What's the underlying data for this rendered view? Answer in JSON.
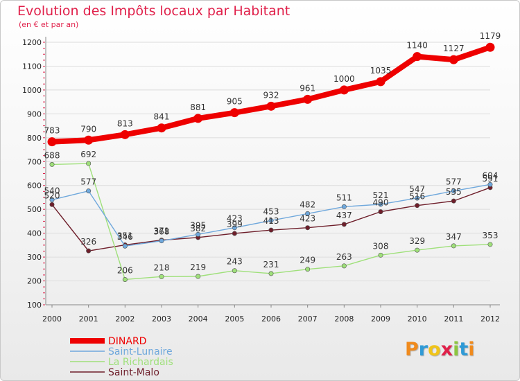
{
  "title": "Evolution des Impôts locaux par Habitant",
  "subtitle": "(en € et par an)",
  "logo": {
    "letters": [
      "P",
      "r",
      "o",
      "x",
      "i",
      "t",
      "i"
    ],
    "colors": [
      "#f08a1c",
      "#2f9ad6",
      "#f0c419",
      "#e0204a",
      "#8cc63f",
      "#2f9ad6",
      "#f08a1c"
    ]
  },
  "chart_data": {
    "type": "line",
    "title": "Evolution des Impôts locaux par Habitant",
    "subtitle": "(en € et par an)",
    "xlabel": "",
    "ylabel": "",
    "ylim": [
      100,
      1200
    ],
    "yticks": [
      "1200",
      "1100",
      "1000",
      "900",
      "800",
      "700",
      "600",
      "500",
      "400",
      "300",
      "200",
      "100"
    ],
    "ytick_values": [
      1200,
      1100,
      1000,
      900,
      800,
      700,
      600,
      500,
      400,
      300,
      200,
      100
    ],
    "categories": [
      "2000",
      "2001",
      "2002",
      "2003",
      "2004",
      "2005",
      "2006",
      "2007",
      "2008",
      "2009",
      "2010",
      "2011",
      "2012"
    ],
    "legend_position": "bottom-left",
    "series": [
      {
        "name": "DINARD",
        "color": "#ee0000",
        "values": [
          783,
          790,
          813,
          841,
          881,
          905,
          932,
          961,
          1000,
          1035,
          1140,
          1127,
          1179
        ],
        "labels": [
          "783",
          "790",
          "813",
          "841",
          "881",
          "905",
          "932",
          "961",
          "1000",
          "1035",
          "1140",
          "1127",
          "1179"
        ]
      },
      {
        "name": "Saint-Lunaire",
        "color": "#6fa8dc",
        "values": [
          540,
          577,
          346,
          368,
          395,
          423,
          453,
          482,
          511,
          521,
          547,
          577,
          604
        ],
        "labels": [
          "540",
          "577",
          "346",
          "368",
          "395",
          "423",
          "453",
          "482",
          "511",
          "521",
          "547",
          "577",
          "604"
        ]
      },
      {
        "name": "La Richardais",
        "color": "#9fe07a",
        "values": [
          688,
          692,
          206,
          218,
          219,
          243,
          231,
          249,
          263,
          308,
          329,
          347,
          353
        ],
        "labels": [
          "688",
          "692",
          "206",
          "218",
          "219",
          "243",
          "231",
          "249",
          "263",
          "308",
          "329",
          "347",
          "353"
        ]
      },
      {
        "name": "Saint-Malo",
        "color": "#6e1e2a",
        "values": [
          520,
          326,
          351,
          371,
          382,
          399,
          413,
          423,
          437,
          490,
          516,
          535,
          591
        ],
        "labels": [
          "520",
          "326",
          "351",
          "371",
          "382",
          "399",
          "413",
          "423",
          "437",
          "490",
          "516",
          "535",
          "591"
        ]
      }
    ]
  }
}
